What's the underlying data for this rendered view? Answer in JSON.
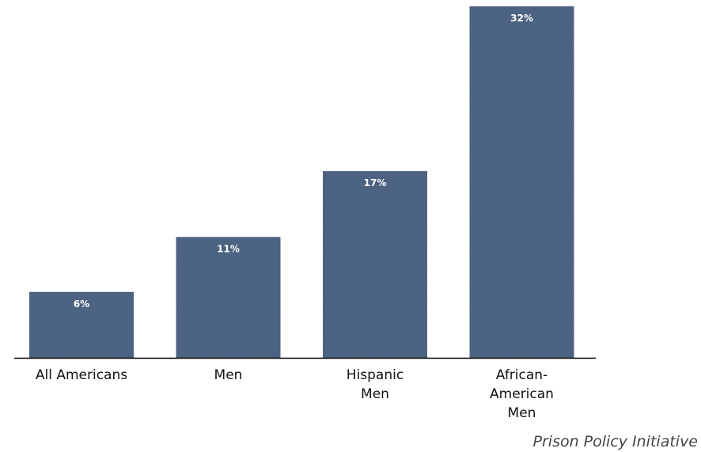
{
  "chart_data": {
    "type": "bar",
    "categories": [
      "All Americans",
      "Men",
      "Hispanic Men",
      "African-American Men"
    ],
    "category_display_lines": [
      [
        "All Americans"
      ],
      [
        "Men"
      ],
      [
        "Hispanic",
        "Men"
      ],
      [
        "African-",
        "American",
        "Men"
      ]
    ],
    "values": [
      6,
      11,
      17,
      32
    ],
    "data_labels": [
      "6%",
      "11%",
      "17%",
      "32%"
    ],
    "unit": "%",
    "bar_color": "#4e6585",
    "ylim": [
      0,
      32
    ],
    "grid": false,
    "title": "",
    "xlabel": "",
    "ylabel": ""
  },
  "source": "Prison Policy Initiative"
}
